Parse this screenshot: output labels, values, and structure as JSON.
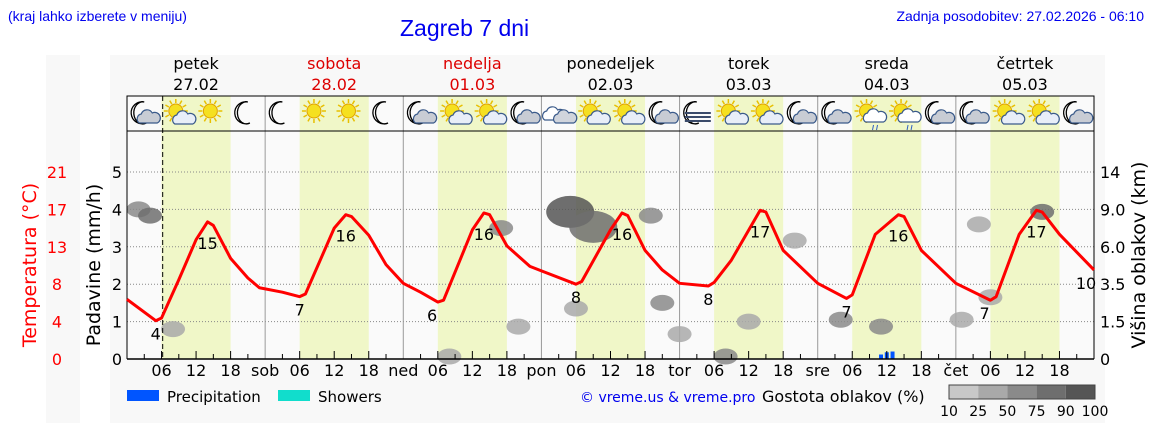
{
  "header": {
    "hint": "(kraj lahko izberete v meniju)",
    "title": "Zagreb 7 dni",
    "updated": "Zadnja posodobitev: 27.02.2026 - 06:10"
  },
  "colors": {
    "temperature": "#ff0000",
    "weekend": "#dd0000",
    "daytime_band": "#f0f7c8",
    "precipitation": "#0055ff",
    "showers": "#11ddcc",
    "link": "#0000ee"
  },
  "days": [
    {
      "name": "petek",
      "date": "27.02",
      "weekend": false,
      "abbr": ""
    },
    {
      "name": "sobota",
      "date": "28.02",
      "weekend": true,
      "abbr": "sob"
    },
    {
      "name": "nedelja",
      "date": "01.03",
      "weekend": true,
      "abbr": "ned"
    },
    {
      "name": "ponedeljek",
      "date": "02.03",
      "weekend": false,
      "abbr": "pon"
    },
    {
      "name": "torek",
      "date": "03.03",
      "weekend": false,
      "abbr": "tor"
    },
    {
      "name": "sreda",
      "date": "04.03",
      "weekend": false,
      "abbr": "sre"
    },
    {
      "name": "četrtek",
      "date": "05.03",
      "weekend": false,
      "abbr": "čet"
    }
  ],
  "icons": [
    "moon-cloud",
    "sun-cloud",
    "sun",
    "moon",
    "moon",
    "sun",
    "sun",
    "moon",
    "moon-cloud",
    "sun-cloud",
    "sun-cloud",
    "moon-cloud",
    "clouds",
    "sun-cloud",
    "sun-cloud",
    "moon-cloud",
    "moon-fog",
    "sun-cloud",
    "sun-cloud",
    "moon-cloud",
    "moon-cloud",
    "sun-rain",
    "sun-rain",
    "moon-cloud",
    "moon-cloud",
    "sun-cloud",
    "sun-cloud",
    "moon-cloud"
  ],
  "wind": {
    "calm_symbol": "circle-icon",
    "barbs_at_hour": [
      84,
      87,
      111,
      114,
      132,
      135,
      138,
      159,
      162
    ]
  },
  "chart_data": {
    "type": "line",
    "x_unit": "hour from 27.02 00:00",
    "hour_ticks": [
      "06",
      "12",
      "18"
    ],
    "axes": {
      "temperature": {
        "label": "Temperatura (°C)",
        "ticks": [
          "0",
          "4",
          "8",
          "13",
          "17",
          "21"
        ],
        "range": [
          0,
          21
        ]
      },
      "precipitation": {
        "label": "Padavine (mm/h)",
        "ticks": [
          "0",
          "1",
          "2",
          "3",
          "4",
          "5"
        ],
        "range": [
          0,
          5
        ]
      },
      "cloud_height": {
        "label": "Višina oblakov (km)",
        "ticks": [
          "0",
          "1.5",
          "3.5",
          "6.0",
          "9.0",
          "14"
        ]
      }
    },
    "grid": true,
    "current_time_hour": 6.2,
    "temperature": [
      [
        0,
        6.7
      ],
      [
        5,
        4.3
      ],
      [
        6,
        4.6
      ],
      [
        9,
        8.9
      ],
      [
        12,
        13.4
      ],
      [
        14,
        15.4
      ],
      [
        15,
        15
      ],
      [
        18,
        11.3
      ],
      [
        21,
        9.1
      ],
      [
        23,
        8
      ],
      [
        27,
        7.5
      ],
      [
        30,
        7
      ],
      [
        31,
        7.3
      ],
      [
        36,
        14.7
      ],
      [
        38,
        16.2
      ],
      [
        39,
        16
      ],
      [
        42,
        13.9
      ],
      [
        45,
        10.6
      ],
      [
        48,
        8.5
      ],
      [
        51,
        7.5
      ],
      [
        54,
        6.4
      ],
      [
        55,
        6.6
      ],
      [
        60,
        14.5
      ],
      [
        62,
        16.4
      ],
      [
        63,
        16.2
      ],
      [
        66,
        12.7
      ],
      [
        70,
        10.4
      ],
      [
        72,
        9.9
      ],
      [
        78,
        8.4
      ],
      [
        79,
        8.7
      ],
      [
        84,
        14.5
      ],
      [
        86,
        16.4
      ],
      [
        87,
        16.1
      ],
      [
        90,
        12.2
      ],
      [
        93,
        10
      ],
      [
        96,
        8.5
      ],
      [
        101,
        8.2
      ],
      [
        102,
        8.6
      ],
      [
        105,
        11.1
      ],
      [
        110,
        16.7
      ],
      [
        111,
        16.5
      ],
      [
        114,
        12.2
      ],
      [
        120,
        8.5
      ],
      [
        125,
        6.8
      ],
      [
        126,
        7.2
      ],
      [
        130,
        14
      ],
      [
        134,
        16.2
      ],
      [
        135,
        16
      ],
      [
        138,
        12.2
      ],
      [
        144,
        8.5
      ],
      [
        150,
        6.6
      ],
      [
        151,
        7
      ],
      [
        155,
        14
      ],
      [
        158,
        16.7
      ],
      [
        159,
        16.5
      ],
      [
        162,
        14
      ],
      [
        168,
        10
      ]
    ],
    "temperature_labels": [
      [
        5,
        "4"
      ],
      [
        14,
        "15"
      ],
      [
        30,
        "7"
      ],
      [
        38,
        "16"
      ],
      [
        53,
        "6"
      ],
      [
        62,
        "16"
      ],
      [
        78,
        "8"
      ],
      [
        86,
        "16"
      ],
      [
        101,
        "8"
      ],
      [
        110,
        "17"
      ],
      [
        125,
        "7"
      ],
      [
        134,
        "16"
      ],
      [
        149,
        "7"
      ],
      [
        158,
        "17"
      ],
      [
        168,
        "10"
      ]
    ],
    "precipitation": [
      [
        131,
        0.12
      ],
      [
        132,
        0.18
      ],
      [
        133,
        0.2
      ]
    ],
    "clouds": [
      [
        2,
        9.0,
        60
      ],
      [
        4,
        8.5,
        75
      ],
      [
        8,
        1.2,
        30
      ],
      [
        56,
        0.1,
        45
      ],
      [
        65,
        7.5,
        70
      ],
      [
        77,
        8.8,
        95
      ],
      [
        81,
        7.6,
        85
      ],
      [
        68,
        1.3,
        40
      ],
      [
        78,
        2.2,
        40
      ],
      [
        91,
        8.5,
        55
      ],
      [
        93,
        2.5,
        50
      ],
      [
        96,
        1.0,
        45
      ],
      [
        104,
        0.1,
        50
      ],
      [
        108,
        1.5,
        30
      ],
      [
        116,
        6.5,
        40
      ],
      [
        124,
        1.6,
        55
      ],
      [
        131,
        1.3,
        50
      ],
      [
        148,
        7.8,
        35
      ],
      [
        150,
        2.8,
        45
      ],
      [
        159,
        8.8,
        75
      ],
      [
        145,
        1.6,
        30
      ]
    ],
    "legend": [
      {
        "name": "Precipitation",
        "color": "#0055ff"
      },
      {
        "name": "Showers",
        "color": "#11ddcc"
      }
    ],
    "cloud_density_legend": {
      "title": "Gostota oblakov (%)",
      "ticks": [
        "10",
        "25",
        "50",
        "75",
        "90",
        "100"
      ]
    }
  },
  "footer": {
    "credit": "© vreme.us & vreme.pro"
  }
}
